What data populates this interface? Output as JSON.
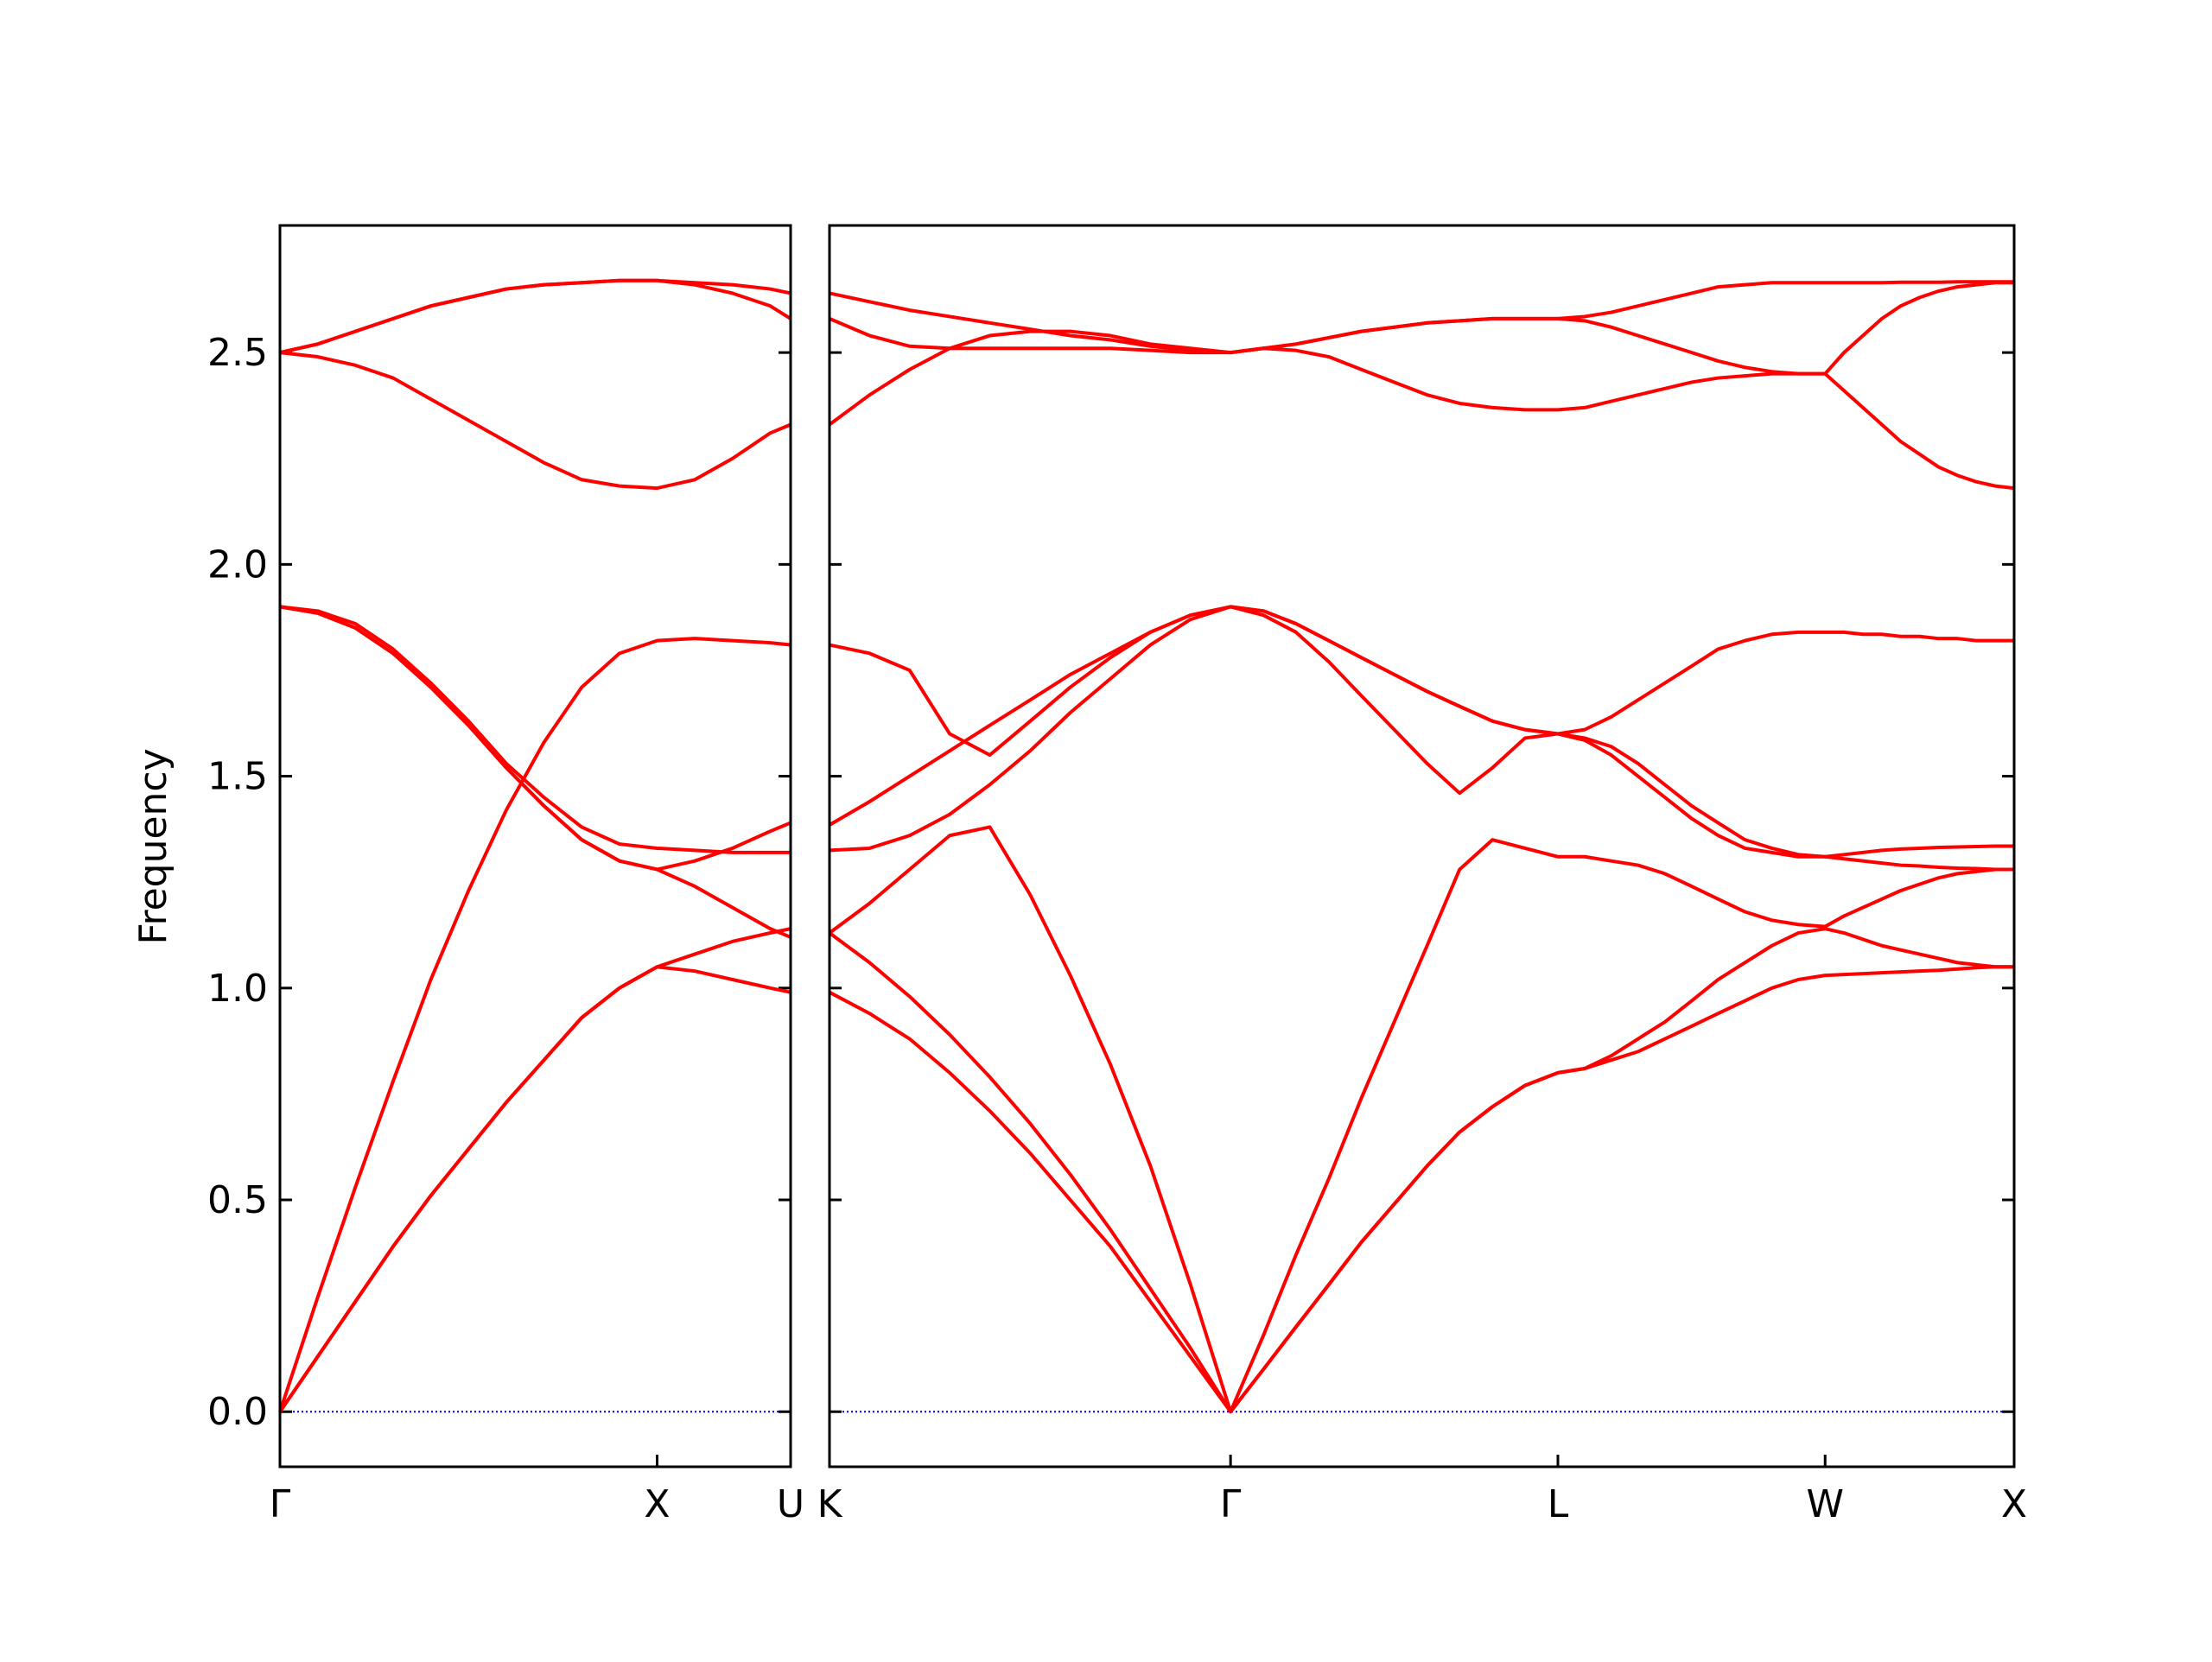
{
  "chart_data": [
    {
      "type": "line",
      "ylabel": "Frequency",
      "color": "#ff0000",
      "zero_line": 0,
      "zero_line_color": "#0000cc",
      "xlim": [
        0,
        1.354
      ],
      "ylim": [
        -0.13,
        2.8
      ],
      "xticks": [
        {
          "value": 0,
          "label": "Γ"
        },
        {
          "value": 1,
          "label": "X"
        },
        {
          "value": 1.354,
          "label": "U"
        }
      ],
      "yticks": [
        {
          "value": 0,
          "label": "0.0"
        },
        {
          "value": 0.5,
          "label": "0.5"
        },
        {
          "value": 1,
          "label": "1.0"
        },
        {
          "value": 1.5,
          "label": "1.5"
        },
        {
          "value": 2,
          "label": "2.0"
        },
        {
          "value": 2.5,
          "label": "2.5"
        }
      ],
      "show_ytick_labels": true,
      "x": [
        0,
        0.1,
        0.2,
        0.3,
        0.4,
        0.5,
        0.6,
        0.7,
        0.8,
        0.9,
        1.0,
        1.1,
        1.2,
        1.3,
        1.354
      ],
      "series": [
        {
          "values": [
            0,
            0.13,
            0.26,
            0.39,
            0.51,
            0.62,
            0.73,
            0.83,
            0.93,
            1.0,
            1.05,
            1.04,
            1.02,
            1.0,
            0.99
          ]
        },
        {
          "values": [
            0,
            0.13,
            0.26,
            0.39,
            0.51,
            0.62,
            0.73,
            0.83,
            0.93,
            1.0,
            1.05,
            1.08,
            1.11,
            1.13,
            1.14
          ]
        },
        {
          "values": [
            0,
            0.27,
            0.53,
            0.78,
            1.02,
            1.23,
            1.42,
            1.58,
            1.71,
            1.79,
            1.82,
            1.825,
            1.82,
            1.815,
            1.81
          ]
        },
        {
          "values": [
            1.9,
            1.89,
            1.86,
            1.8,
            1.72,
            1.63,
            1.53,
            1.45,
            1.38,
            1.34,
            1.33,
            1.325,
            1.32,
            1.32,
            1.32
          ]
        },
        {
          "values": [
            1.9,
            1.885,
            1.85,
            1.79,
            1.71,
            1.62,
            1.52,
            1.43,
            1.35,
            1.3,
            1.28,
            1.3,
            1.33,
            1.37,
            1.39
          ]
        },
        {
          "values": [
            1.9,
            1.885,
            1.85,
            1.79,
            1.71,
            1.62,
            1.52,
            1.43,
            1.35,
            1.3,
            1.28,
            1.24,
            1.19,
            1.14,
            1.12
          ]
        },
        {
          "values": [
            2.5,
            2.52,
            2.55,
            2.58,
            2.61,
            2.63,
            2.65,
            2.66,
            2.665,
            2.67,
            2.67,
            2.665,
            2.66,
            2.65,
            2.64
          ]
        },
        {
          "values": [
            2.5,
            2.52,
            2.55,
            2.58,
            2.61,
            2.63,
            2.65,
            2.66,
            2.665,
            2.67,
            2.67,
            2.66,
            2.64,
            2.61,
            2.58
          ]
        },
        {
          "values": [
            2.5,
            2.49,
            2.47,
            2.44,
            2.39,
            2.34,
            2.29,
            2.24,
            2.2,
            2.185,
            2.18,
            2.2,
            2.25,
            2.31,
            2.33
          ]
        }
      ]
    },
    {
      "type": "line",
      "color": "#ff0000",
      "zero_line": 0,
      "zero_line_color": "#0000cc",
      "xlim": [
        1.354,
        4.488
      ],
      "ylim": [
        -0.13,
        2.8
      ],
      "xticks": [
        {
          "value": 1.354,
          "label": "K"
        },
        {
          "value": 2.415,
          "label": "Γ"
        },
        {
          "value": 3.281,
          "label": "L"
        },
        {
          "value": 3.988,
          "label": "W"
        },
        {
          "value": 4.488,
          "label": "X"
        }
      ],
      "yticks": [
        0,
        0.5,
        1,
        1.5,
        2,
        2.5
      ],
      "show_ytick_labels": false,
      "x": [
        1.354,
        1.46,
        1.566,
        1.672,
        1.778,
        1.885,
        1.991,
        2.097,
        2.203,
        2.309,
        2.415,
        2.502,
        2.588,
        2.675,
        2.761,
        2.848,
        2.935,
        3.021,
        3.108,
        3.194,
        3.281,
        3.352,
        3.422,
        3.493,
        3.564,
        3.635,
        3.705,
        3.776,
        3.847,
        3.917,
        3.988,
        4.038,
        4.088,
        4.138,
        4.188,
        4.238,
        4.288,
        4.338,
        4.388,
        4.438,
        4.488
      ],
      "series": [
        {
          "values": [
            0.99,
            0.94,
            0.88,
            0.8,
            0.71,
            0.61,
            0.5,
            0.39,
            0.26,
            0.13,
            0,
            0.1,
            0.2,
            0.3,
            0.4,
            0.49,
            0.58,
            0.66,
            0.72,
            0.77,
            0.8,
            0.81,
            0.83,
            0.85,
            0.88,
            0.91,
            0.94,
            0.97,
            1.0,
            1.02,
            1.03,
            1.032,
            1.034,
            1.036,
            1.038,
            1.04,
            1.042,
            1.045,
            1.048,
            1.05,
            1.05
          ]
        },
        {
          "values": [
            1.13,
            1.06,
            0.98,
            0.89,
            0.79,
            0.68,
            0.56,
            0.43,
            0.29,
            0.15,
            0,
            0.1,
            0.2,
            0.3,
            0.4,
            0.49,
            0.58,
            0.66,
            0.72,
            0.77,
            0.8,
            0.81,
            0.84,
            0.88,
            0.92,
            0.97,
            1.02,
            1.06,
            1.1,
            1.13,
            1.14,
            1.13,
            1.115,
            1.1,
            1.09,
            1.08,
            1.07,
            1.06,
            1.055,
            1.05,
            1.05
          ]
        },
        {
          "values": [
            1.13,
            1.2,
            1.28,
            1.36,
            1.38,
            1.22,
            1.03,
            0.82,
            0.58,
            0.3,
            0,
            0.18,
            0.37,
            0.55,
            0.74,
            0.92,
            1.1,
            1.28,
            1.35,
            1.33,
            1.31,
            1.31,
            1.3,
            1.29,
            1.27,
            1.24,
            1.21,
            1.18,
            1.16,
            1.15,
            1.145,
            1.17,
            1.19,
            1.21,
            1.23,
            1.245,
            1.26,
            1.27,
            1.275,
            1.28,
            1.28
          ]
        },
        {
          "values": [
            1.81,
            1.79,
            1.75,
            1.6,
            1.55,
            1.63,
            1.71,
            1.78,
            1.84,
            1.88,
            1.9,
            1.88,
            1.84,
            1.77,
            1.69,
            1.61,
            1.53,
            1.46,
            1.52,
            1.59,
            1.6,
            1.61,
            1.64,
            1.68,
            1.72,
            1.76,
            1.8,
            1.82,
            1.835,
            1.84,
            1.84,
            1.84,
            1.835,
            1.835,
            1.83,
            1.83,
            1.825,
            1.825,
            1.82,
            1.82,
            1.82
          ]
        },
        {
          "values": [
            1.325,
            1.33,
            1.36,
            1.41,
            1.48,
            1.56,
            1.65,
            1.73,
            1.81,
            1.87,
            1.9,
            1.89,
            1.86,
            1.82,
            1.78,
            1.74,
            1.7,
            1.665,
            1.63,
            1.61,
            1.6,
            1.59,
            1.57,
            1.53,
            1.48,
            1.43,
            1.39,
            1.35,
            1.33,
            1.315,
            1.31,
            1.315,
            1.32,
            1.325,
            1.328,
            1.33,
            1.332,
            1.333,
            1.334,
            1.335,
            1.335
          ]
        },
        {
          "values": [
            1.385,
            1.44,
            1.5,
            1.56,
            1.62,
            1.68,
            1.74,
            1.79,
            1.84,
            1.88,
            1.9,
            1.89,
            1.86,
            1.82,
            1.78,
            1.74,
            1.7,
            1.665,
            1.63,
            1.61,
            1.6,
            1.585,
            1.55,
            1.5,
            1.45,
            1.4,
            1.36,
            1.33,
            1.32,
            1.31,
            1.31,
            1.305,
            1.3,
            1.295,
            1.29,
            1.288,
            1.285,
            1.283,
            1.282,
            1.28,
            1.28
          ]
        },
        {
          "values": [
            2.33,
            2.4,
            2.46,
            2.51,
            2.54,
            2.55,
            2.55,
            2.54,
            2.52,
            2.51,
            2.5,
            2.51,
            2.505,
            2.49,
            2.46,
            2.43,
            2.4,
            2.38,
            2.37,
            2.365,
            2.365,
            2.37,
            2.385,
            2.4,
            2.415,
            2.43,
            2.44,
            2.445,
            2.45,
            2.45,
            2.45,
            2.41,
            2.37,
            2.33,
            2.29,
            2.26,
            2.23,
            2.21,
            2.195,
            2.185,
            2.18
          ]
        },
        {
          "values": [
            2.58,
            2.54,
            2.515,
            2.51,
            2.51,
            2.51,
            2.51,
            2.51,
            2.505,
            2.5,
            2.5,
            2.51,
            2.52,
            2.535,
            2.55,
            2.56,
            2.57,
            2.575,
            2.58,
            2.58,
            2.58,
            2.575,
            2.56,
            2.54,
            2.52,
            2.5,
            2.48,
            2.465,
            2.455,
            2.45,
            2.45,
            2.5,
            2.54,
            2.58,
            2.61,
            2.63,
            2.645,
            2.655,
            2.66,
            2.665,
            2.665
          ]
        },
        {
          "values": [
            2.64,
            2.62,
            2.6,
            2.585,
            2.57,
            2.555,
            2.54,
            2.53,
            2.515,
            2.505,
            2.5,
            2.51,
            2.52,
            2.535,
            2.55,
            2.56,
            2.57,
            2.575,
            2.58,
            2.58,
            2.58,
            2.585,
            2.595,
            2.61,
            2.625,
            2.64,
            2.655,
            2.66,
            2.665,
            2.665,
            2.665,
            2.665,
            2.665,
            2.665,
            2.666,
            2.666,
            2.666,
            2.667,
            2.667,
            2.667,
            2.667
          ]
        }
      ]
    }
  ]
}
